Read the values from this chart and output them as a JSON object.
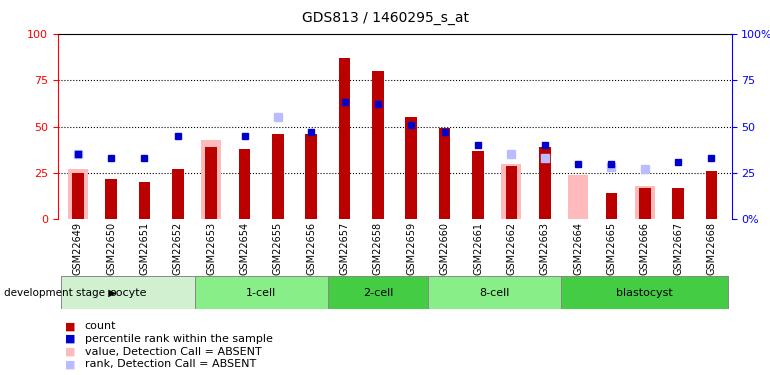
{
  "title": "GDS813 / 1460295_s_at",
  "samples": [
    "GSM22649",
    "GSM22650",
    "GSM22651",
    "GSM22652",
    "GSM22653",
    "GSM22654",
    "GSM22655",
    "GSM22656",
    "GSM22657",
    "GSM22658",
    "GSM22659",
    "GSM22660",
    "GSM22661",
    "GSM22662",
    "GSM22663",
    "GSM22664",
    "GSM22665",
    "GSM22666",
    "GSM22667",
    "GSM22668"
  ],
  "count_values": [
    25,
    22,
    20,
    27,
    39,
    38,
    46,
    46,
    87,
    80,
    55,
    49,
    37,
    29,
    39,
    0,
    14,
    17,
    17,
    26
  ],
  "percentile_values": [
    35,
    33,
    33,
    45,
    0,
    45,
    0,
    47,
    63,
    62,
    51,
    47,
    40,
    0,
    40,
    30,
    30,
    0,
    31,
    33
  ],
  "absent_value_values": [
    27,
    0,
    0,
    0,
    43,
    0,
    0,
    0,
    0,
    0,
    0,
    0,
    0,
    30,
    0,
    24,
    0,
    18,
    0,
    0
  ],
  "absent_rank_values": [
    35,
    0,
    0,
    0,
    0,
    0,
    55,
    0,
    0,
    0,
    0,
    0,
    0,
    35,
    33,
    0,
    28,
    27,
    0,
    0
  ],
  "stages": [
    {
      "label": "oocyte",
      "start": 0,
      "end": 3,
      "color": "#d0f0d0"
    },
    {
      "label": "1-cell",
      "start": 4,
      "end": 7,
      "color": "#88ee88"
    },
    {
      "label": "2-cell",
      "start": 8,
      "end": 10,
      "color": "#44cc44"
    },
    {
      "label": "8-cell",
      "start": 11,
      "end": 14,
      "color": "#88ee88"
    },
    {
      "label": "blastocyst",
      "start": 15,
      "end": 19,
      "color": "#44cc44"
    }
  ],
  "count_color": "#bb0000",
  "percentile_color": "#0000cc",
  "absent_value_color": "#ffbbbb",
  "absent_rank_color": "#bbbbff",
  "ylim": [
    0,
    100
  ],
  "title_fontsize": 10,
  "tick_fontsize": 7,
  "legend_fontsize": 8,
  "dev_stage_label": "development stage"
}
